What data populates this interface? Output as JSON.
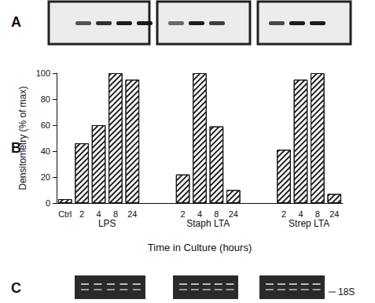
{
  "chart_data": {
    "type": "bar",
    "categories": [
      "Ctrl",
      "2",
      "4",
      "8",
      "24",
      null,
      null,
      "2",
      "4",
      "8",
      "24",
      null,
      null,
      "2",
      "4",
      "8",
      "24"
    ],
    "values": [
      3,
      46,
      60,
      100,
      95,
      null,
      null,
      22,
      100,
      59,
      10,
      null,
      null,
      41,
      95,
      100,
      7
    ],
    "group_labels": [
      null,
      "LPS",
      "LPS",
      "LPS",
      "LPS",
      null,
      null,
      "Staph LTA",
      "Staph LTA",
      "Staph LTA",
      "Staph LTA",
      null,
      null,
      "Strep LTA",
      "Strep LTA",
      "Strep LTA",
      "Strep LTA"
    ],
    "xlabel": "Time in Culture (hours)",
    "ylabel": "Densitometry (% of max)",
    "ylim": [
      0,
      100
    ],
    "yticks": [
      0,
      20,
      40,
      60,
      80,
      100
    ],
    "color": "#222222",
    "grid": false,
    "data_labels": false
  },
  "panel_labels": [
    "A",
    "B",
    "C"
  ],
  "band_label": "18S"
}
